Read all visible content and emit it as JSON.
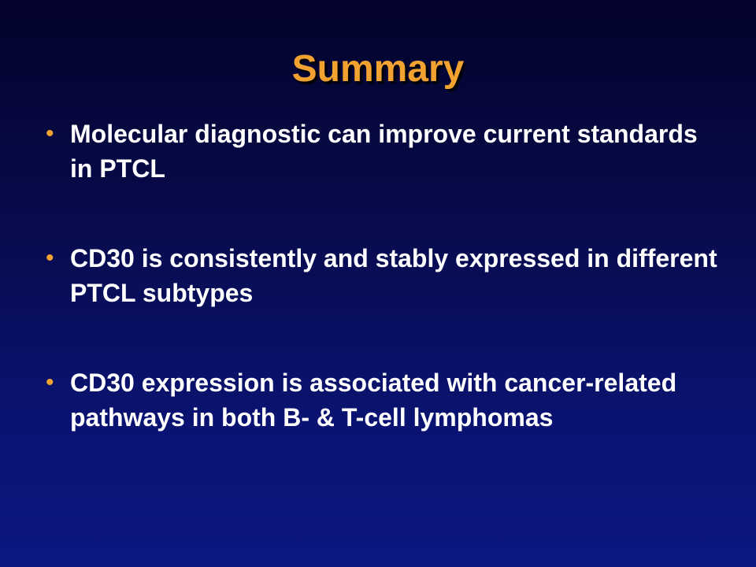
{
  "slide": {
    "title": "Summary",
    "bullet_mark": "•",
    "bullets": [
      {
        "text": "Molecular diagnostic can improve current standards in PTCL"
      },
      {
        "text": "CD30 is consistently and stably expressed in different PTCL subtypes"
      },
      {
        "text": "CD30 expression is associated with cancer-related pathways in both B- & T-cell lymphomas"
      }
    ]
  },
  "colors": {
    "title": "#f2a230",
    "bullet_mark": "#f2a230",
    "text": "#ffffff",
    "background_top": "#04032c",
    "background_bottom": "#0c1782"
  }
}
